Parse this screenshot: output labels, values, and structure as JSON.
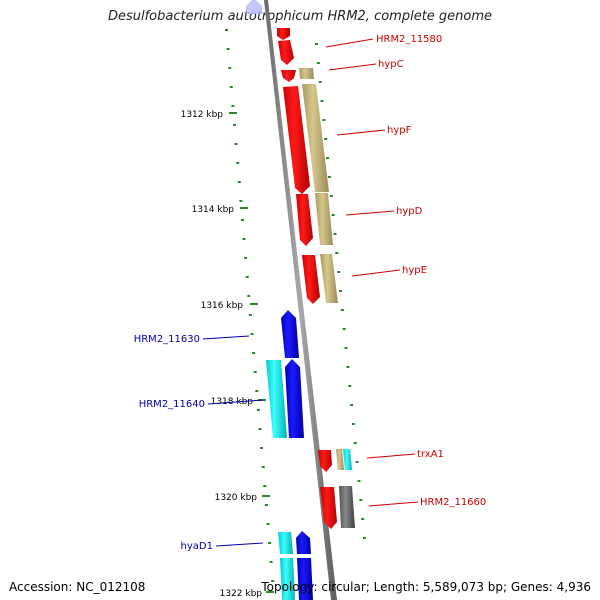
{
  "title": "Desulfobacterium autotrophicum HRM2, complete genome",
  "footer": {
    "accession": "Accession: NC_012108",
    "topology": "Topology: circular; Length: 5,589,073 bp; Genes: 4,936"
  },
  "colors": {
    "backbone": "#8a8a8a",
    "ticks": "#2a8a2a",
    "red_label": "#cc0000",
    "blue_label": "#0000aa",
    "gene_red": "#ff0000",
    "gene_blue": "#0000ff",
    "gene_cyan": "#00ffff",
    "gene_khaki": "#c8b87a",
    "gene_grey": "#707070"
  },
  "kbp_ticks": [
    "1312 kbp",
    "1314 kbp",
    "1316 kbp",
    "1318 kbp",
    "1320 kbp",
    "1322 kbp"
  ],
  "gene_labels_right": [
    "HRM2_11580",
    "hypC",
    "hypF",
    "hypD",
    "hypE",
    "trxA1",
    "HRM2_11660"
  ],
  "gene_labels_left": [
    "HRM2_11630",
    "HRM2_11640",
    "hyaD1"
  ]
}
